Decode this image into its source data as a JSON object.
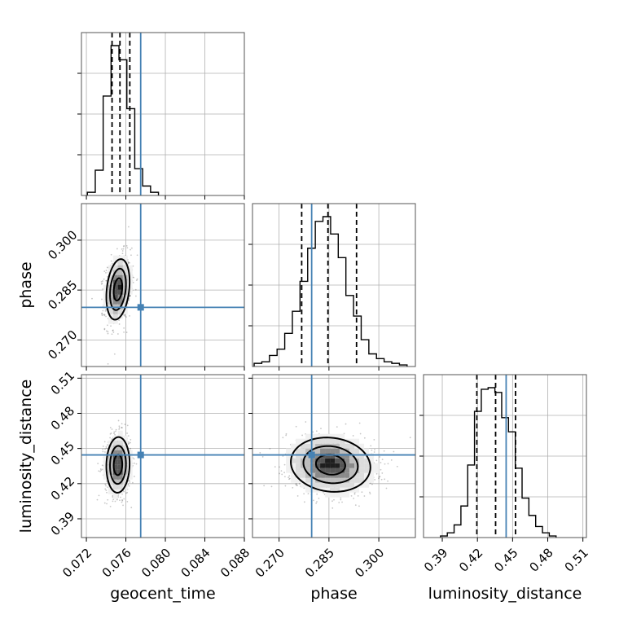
{
  "chart_data": {
    "type": "corner",
    "parameters": [
      {
        "name": "geocent_time",
        "label": "geocent_time",
        "range": [
          0.0715,
          0.088
        ],
        "ticks": [
          0.072,
          0.076,
          0.08,
          0.084,
          0.088
        ],
        "tick_labels": [
          "0.072",
          "0.076",
          "0.080",
          "0.084",
          "0.088"
        ],
        "truth": 0.0775,
        "quantiles": [
          0.0746,
          0.0754,
          0.0764
        ]
      },
      {
        "name": "phase",
        "label": "phase",
        "range": [
          0.262,
          0.311
        ],
        "ticks": [
          0.27,
          0.285,
          0.3
        ],
        "tick_labels": [
          "0.270",
          "0.285",
          "0.300"
        ],
        "truth": 0.2798,
        "quantiles": [
          0.2768,
          0.2847,
          0.2933
        ]
      },
      {
        "name": "luminosity_distance",
        "label": "luminosity_distance",
        "range": [
          0.374,
          0.513
        ],
        "ticks": [
          0.39,
          0.42,
          0.45,
          0.48,
          0.51
        ],
        "tick_labels": [
          "0.39",
          "0.42",
          "0.45",
          "0.48",
          "0.51"
        ],
        "truth": 0.4445,
        "quantiles": [
          0.4195,
          0.4355,
          0.4525
        ]
      }
    ],
    "histograms": [
      {
        "param": "geocent_time",
        "bin_edges": [
          0.0721,
          0.0729,
          0.0737,
          0.0745,
          0.0753,
          0.0761,
          0.0769,
          0.0777,
          0.0785,
          0.0793
        ],
        "counts": [
          2,
          16,
          63,
          95,
          86,
          55,
          17,
          6,
          2
        ]
      },
      {
        "param": "phase",
        "bin_edges": [
          0.2625,
          0.2648,
          0.2671,
          0.2694,
          0.2717,
          0.274,
          0.2763,
          0.2786,
          0.2809,
          0.2832,
          0.2855,
          0.2878,
          0.2901,
          0.2924,
          0.2947,
          0.297,
          0.2993,
          0.3016,
          0.3039,
          0.3062,
          0.3085
        ],
        "counts": [
          2,
          3,
          7,
          11,
          21,
          35,
          54,
          75,
          92,
          95,
          84,
          69,
          45,
          32,
          17,
          8,
          5,
          3,
          2,
          1
        ]
      },
      {
        "param": "luminosity_distance",
        "bin_edges": [
          0.3885,
          0.3943,
          0.4001,
          0.4059,
          0.4117,
          0.4175,
          0.4233,
          0.4291,
          0.4349,
          0.4407,
          0.4465,
          0.4523,
          0.4581,
          0.4639,
          0.4697,
          0.4755,
          0.4813,
          0.4871
        ],
        "counts": [
          1,
          3,
          8,
          20,
          46,
          80,
          94,
          95,
          92,
          76,
          67,
          44,
          25,
          14,
          7,
          3,
          1
        ]
      }
    ],
    "pairs": [
      {
        "x": "geocent_time",
        "y": "phase",
        "center": [
          0.0752,
          0.2852
        ],
        "sigma": [
          0.00062,
          0.0048
        ],
        "rho": 0.25
      },
      {
        "x": "geocent_time",
        "y": "luminosity_distance",
        "center": [
          0.0752,
          0.436
        ],
        "sigma": [
          0.00062,
          0.0125
        ],
        "rho": 0.05
      },
      {
        "x": "phase",
        "y": "luminosity_distance",
        "center": [
          0.2855,
          0.4362
        ],
        "sigma": [
          0.0063,
          0.0122
        ],
        "rho": -0.1
      }
    ],
    "truth_color": "#4682b4",
    "grid": true
  }
}
